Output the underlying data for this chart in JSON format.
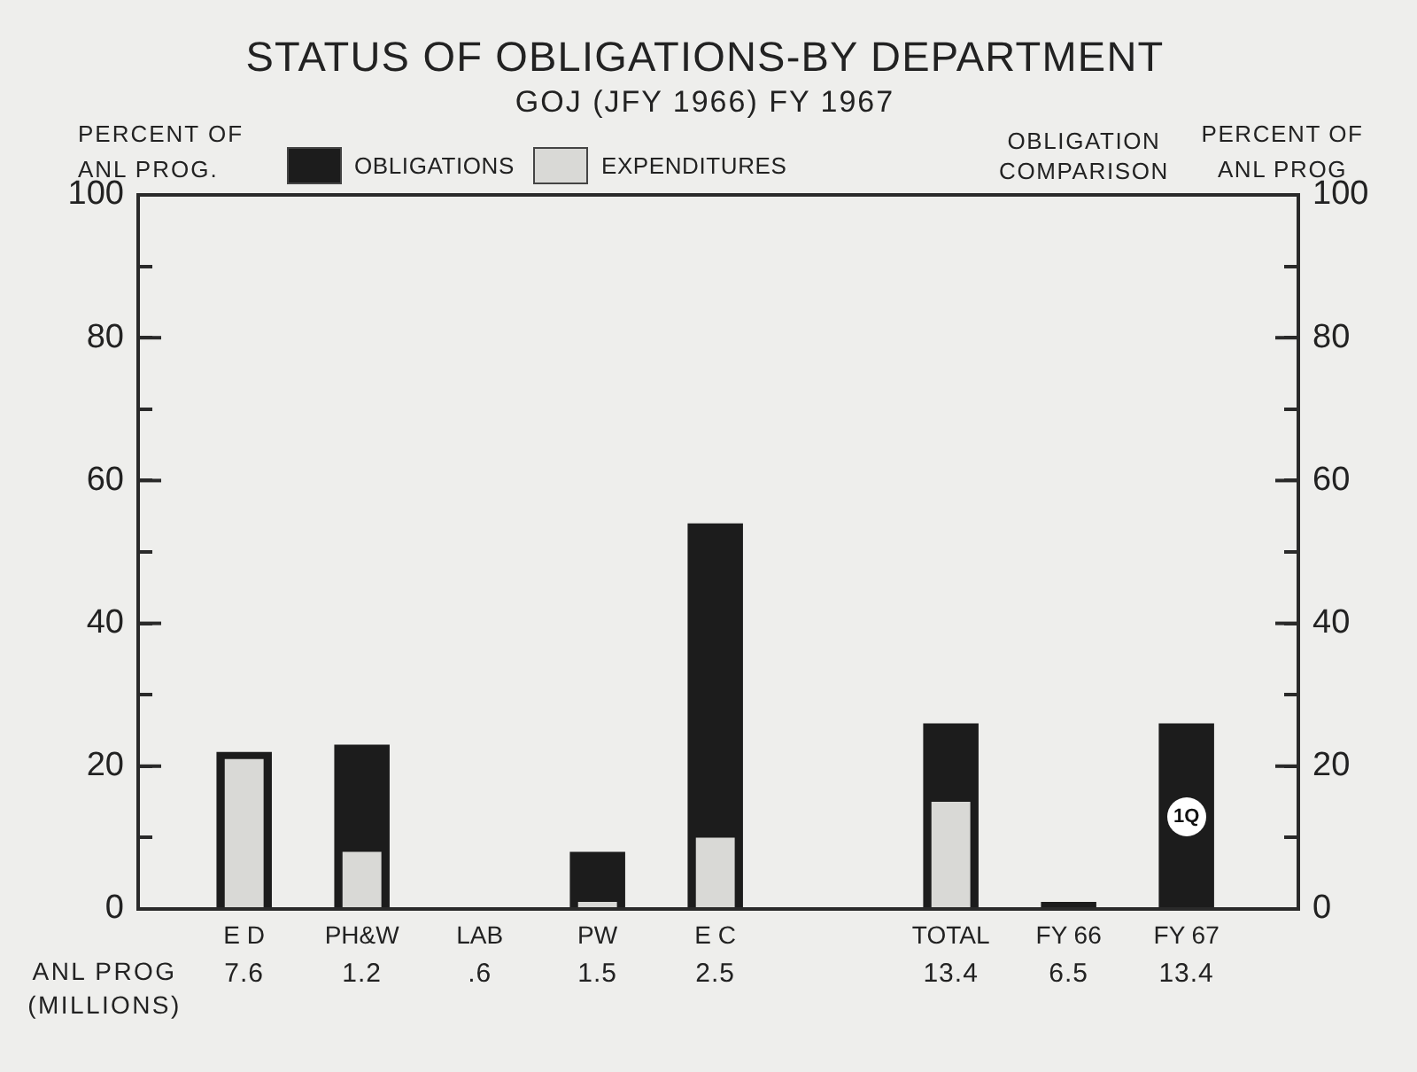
{
  "chart_data": {
    "type": "bar",
    "title": "STATUS OF OBLIGATIONS-BY DEPARTMENT",
    "subtitle": "GOJ (JFY 1966) FY 1967",
    "ylabel": "PERCENT OF ANL PROG.",
    "y2label": "PERCENT OF ANL PROG",
    "categories": [
      "E D",
      "PH&W",
      "LAB",
      "PW",
      "E C",
      null,
      "TOTAL",
      "FY 66",
      "FY 67"
    ],
    "series": [
      {
        "name": "OBLIGATIONS",
        "color": "#1c1c1c",
        "values": [
          22,
          23,
          0,
          8,
          54,
          null,
          26,
          1,
          26
        ]
      },
      {
        "name": "EXPENDITURES",
        "color": "#d9d9d6",
        "values": [
          21,
          8,
          0,
          1,
          10,
          null,
          15,
          null,
          null
        ]
      }
    ],
    "ylim": [
      0,
      100
    ],
    "yticks": [
      0,
      {
        "value": 10,
        "label": null
      },
      20,
      {
        "value": 30,
        "label": null
      },
      40,
      {
        "value": 50,
        "label": null
      },
      60,
      {
        "value": 70,
        "label": null
      },
      80,
      {
        "value": 90,
        "label": null
      },
      100
    ],
    "y2lim": [
      0,
      100
    ],
    "y2ticks": [
      0,
      {
        "value": 10,
        "label": null
      },
      20,
      {
        "value": 30,
        "label": null
      },
      40,
      {
        "value": 50,
        "label": null
      },
      60,
      {
        "value": 70,
        "label": null
      },
      80,
      {
        "value": 90,
        "label": null
      },
      100
    ],
    "legend": "top",
    "annotations": [
      "OBLIGATION COMPARISON",
      "ANL PROG (MILLIONS)",
      "7.6",
      "1.2",
      ".6",
      "1.5",
      "2.5",
      "13.4",
      "6.5",
      "13.4",
      {
        "text": "1Q",
        "x": "FY 67",
        "y": 13
      }
    ]
  }
}
